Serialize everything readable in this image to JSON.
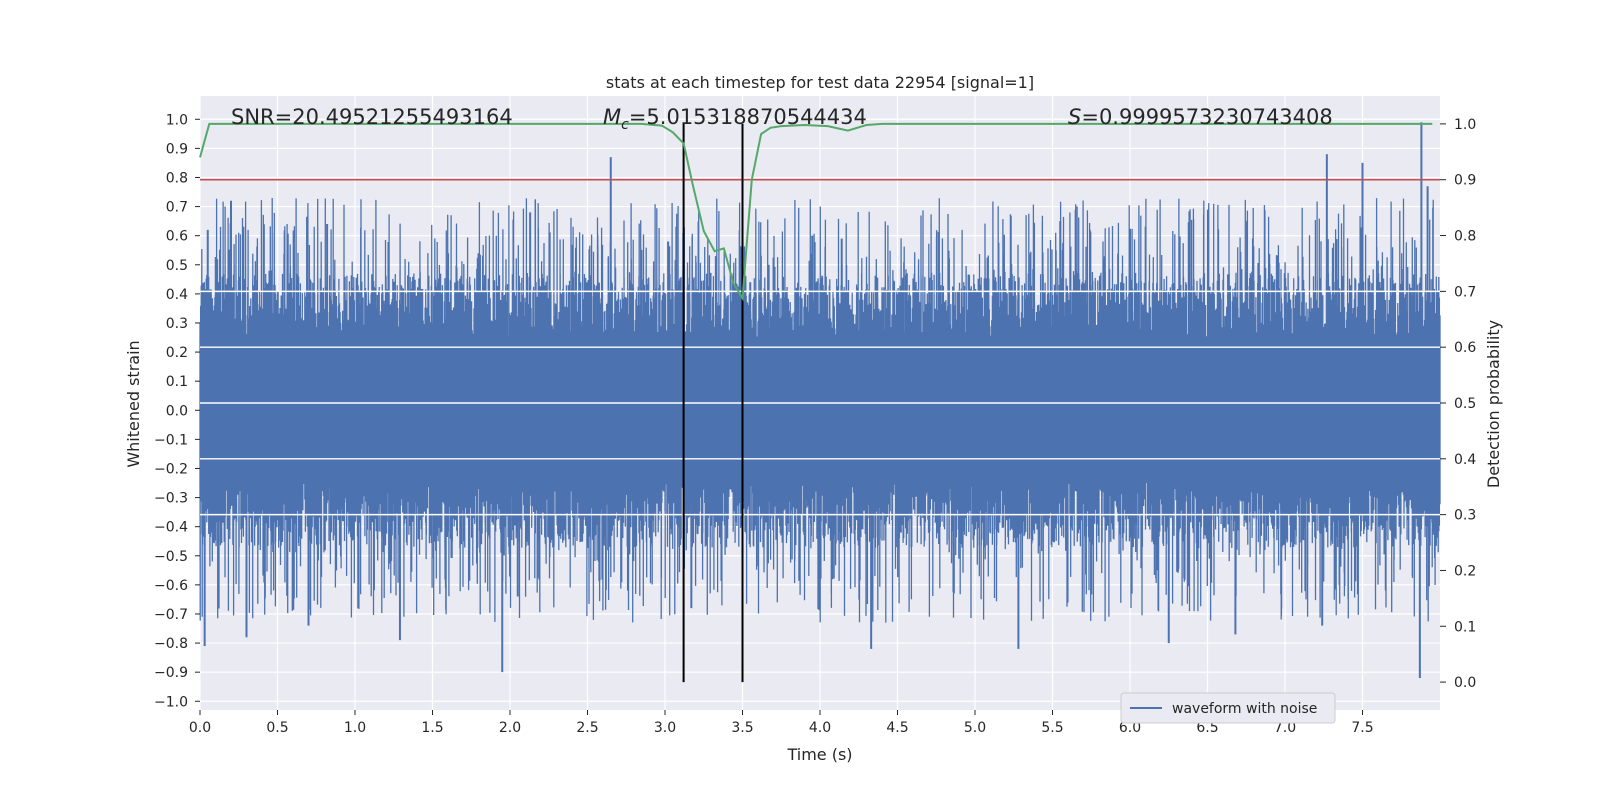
{
  "chart_data": {
    "type": "line",
    "title": "stats at each timestep for test data 22954 [signal=1]",
    "xlabel": "Time (s)",
    "ylabel": "Whitened strain",
    "y2label": "Detection probability",
    "xlim": [
      0,
      8.0
    ],
    "ylim": [
      -1.03,
      1.08
    ],
    "y2lim": [
      -0.05,
      1.05
    ],
    "xticks": [
      0.0,
      0.5,
      1.0,
      1.5,
      2.0,
      2.5,
      3.0,
      3.5,
      4.0,
      4.5,
      5.0,
      5.5,
      6.0,
      6.5,
      7.0,
      7.5
    ],
    "xtick_labels": [
      "0.0",
      "0.5",
      "1.0",
      "1.5",
      "2.0",
      "2.5",
      "3.0",
      "3.5",
      "4.0",
      "4.5",
      "5.0",
      "5.5",
      "6.0",
      "6.5",
      "7.0",
      "7.5"
    ],
    "yticks": [
      -1.0,
      -0.9,
      -0.8,
      -0.7,
      -0.6,
      -0.5,
      -0.4,
      -0.3,
      -0.2,
      -0.1,
      0.0,
      0.1,
      0.2,
      0.3,
      0.4,
      0.5,
      0.6,
      0.7,
      0.8,
      0.9,
      1.0
    ],
    "ytick_labels": [
      "−1.0",
      "−0.9",
      "−0.8",
      "−0.7",
      "−0.6",
      "−0.5",
      "−0.4",
      "−0.3",
      "−0.2",
      "−0.1",
      "0.0",
      "0.1",
      "0.2",
      "0.3",
      "0.4",
      "0.5",
      "0.6",
      "0.7",
      "0.8",
      "0.9",
      "1.0"
    ],
    "y2ticks": [
      0.0,
      0.1,
      0.2,
      0.3,
      0.4,
      0.5,
      0.6,
      0.7,
      0.8,
      0.9,
      1.0
    ],
    "y2tick_labels": [
      "0.0",
      "0.1",
      "0.2",
      "0.3",
      "0.4",
      "0.5",
      "0.6",
      "0.7",
      "0.8",
      "0.9",
      "1.0"
    ],
    "grid": true,
    "legend_position": "lower-right",
    "series": [
      {
        "name": "waveform with noise",
        "axis": "left",
        "kind": "dense-noise",
        "color": "#4c72b0",
        "sample_rate_hz": 2048,
        "duration_s": 8.0,
        "typical_envelope": [
          -0.45,
          0.45
        ],
        "positive_peaks": [
          [
            0.05,
            0.62
          ],
          [
            0.2,
            0.72
          ],
          [
            0.82,
            0.64
          ],
          [
            2.13,
            0.68
          ],
          [
            2.65,
            0.87
          ],
          [
            3.02,
            0.58
          ],
          [
            3.55,
            0.44
          ],
          [
            3.95,
            0.6
          ],
          [
            4.14,
            0.59
          ],
          [
            5.55,
            0.65
          ],
          [
            7.27,
            0.88
          ],
          [
            7.5,
            0.85
          ],
          [
            7.88,
            0.99
          ],
          [
            7.92,
            0.77
          ]
        ],
        "negative_peaks": [
          [
            0.03,
            -0.81
          ],
          [
            0.3,
            -0.78
          ],
          [
            0.7,
            -0.74
          ],
          [
            1.29,
            -0.79
          ],
          [
            1.95,
            -0.9
          ],
          [
            2.05,
            -0.64
          ],
          [
            3.17,
            -0.68
          ],
          [
            4.33,
            -0.82
          ],
          [
            5.28,
            -0.82
          ],
          [
            6.25,
            -0.8
          ],
          [
            6.68,
            -0.77
          ],
          [
            7.24,
            -0.74
          ],
          [
            7.87,
            -0.92
          ]
        ]
      },
      {
        "name": "",
        "axis": "right",
        "kind": "line",
        "color": "#55a868",
        "x": [
          0.0,
          0.06,
          0.2,
          0.5,
          1.0,
          1.5,
          2.0,
          2.5,
          2.85,
          2.98,
          3.05,
          3.12,
          3.18,
          3.25,
          3.32,
          3.38,
          3.44,
          3.5,
          3.56,
          3.62,
          3.68,
          3.75,
          3.9,
          4.05,
          4.18,
          4.3,
          4.4,
          4.6,
          5.0,
          6.0,
          7.0,
          7.95
        ],
        "y": [
          0.94,
          1.0,
          1.0,
          1.0,
          1.0,
          1.0,
          1.0,
          1.0,
          1.0,
          0.997,
          0.985,
          0.965,
          0.89,
          0.808,
          0.772,
          0.777,
          0.715,
          0.688,
          0.9,
          0.982,
          0.993,
          0.996,
          0.998,
          0.996,
          0.988,
          0.998,
          1.0,
          1.0,
          1.0,
          1.0,
          1.0,
          1.0
        ]
      }
    ],
    "threshold": {
      "axis": "right",
      "value": 0.9,
      "color": "#c44e52"
    },
    "vertical_markers": [
      {
        "x": 3.12,
        "color": "#000000"
      },
      {
        "x": 3.5,
        "color": "#000000"
      }
    ],
    "annotations": [
      {
        "x": 0.2,
        "text": "SNR=20.49521255493164"
      },
      {
        "x": 2.6,
        "text": "Mc=5.015318870544434",
        "kind": "mc"
      },
      {
        "x": 5.6,
        "text": "S=0.9999573230743408",
        "kind": "s"
      }
    ]
  }
}
